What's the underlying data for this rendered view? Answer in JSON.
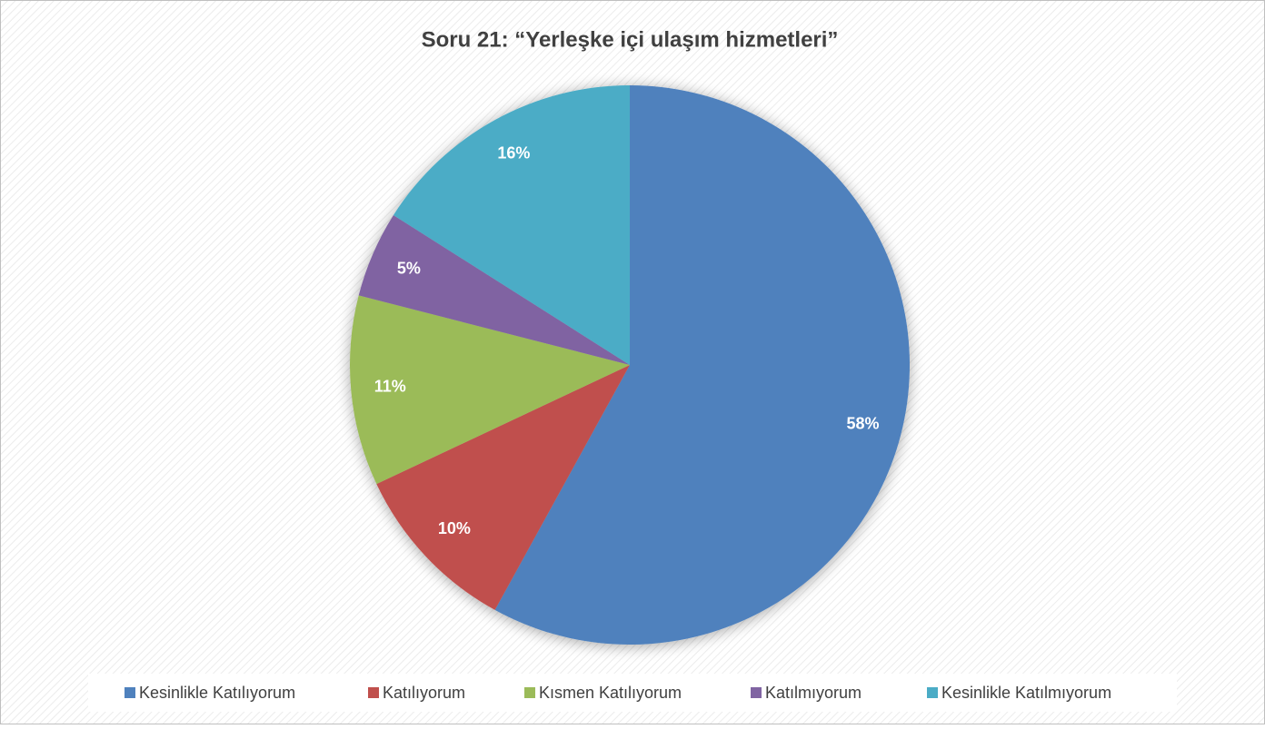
{
  "chart_data": {
    "type": "pie",
    "title": "Soru 21: “Yerleşke içi ulaşım hizmetleri”",
    "categories": [
      "Kesinlikle Katılıyorum",
      "Katılıyorum",
      "Kısmen Katılıyorum",
      "Katılmıyorum",
      "Kesinlikle Katılmıyorum"
    ],
    "values": [
      58,
      10,
      11,
      5,
      16
    ],
    "value_labels": [
      "58%",
      "10%",
      "11%",
      "5%",
      "16%"
    ],
    "colors": [
      "#4f81bd",
      "#c0504d",
      "#9bbb59",
      "#8064a2",
      "#4bacc6"
    ],
    "legend": "bottom"
  }
}
